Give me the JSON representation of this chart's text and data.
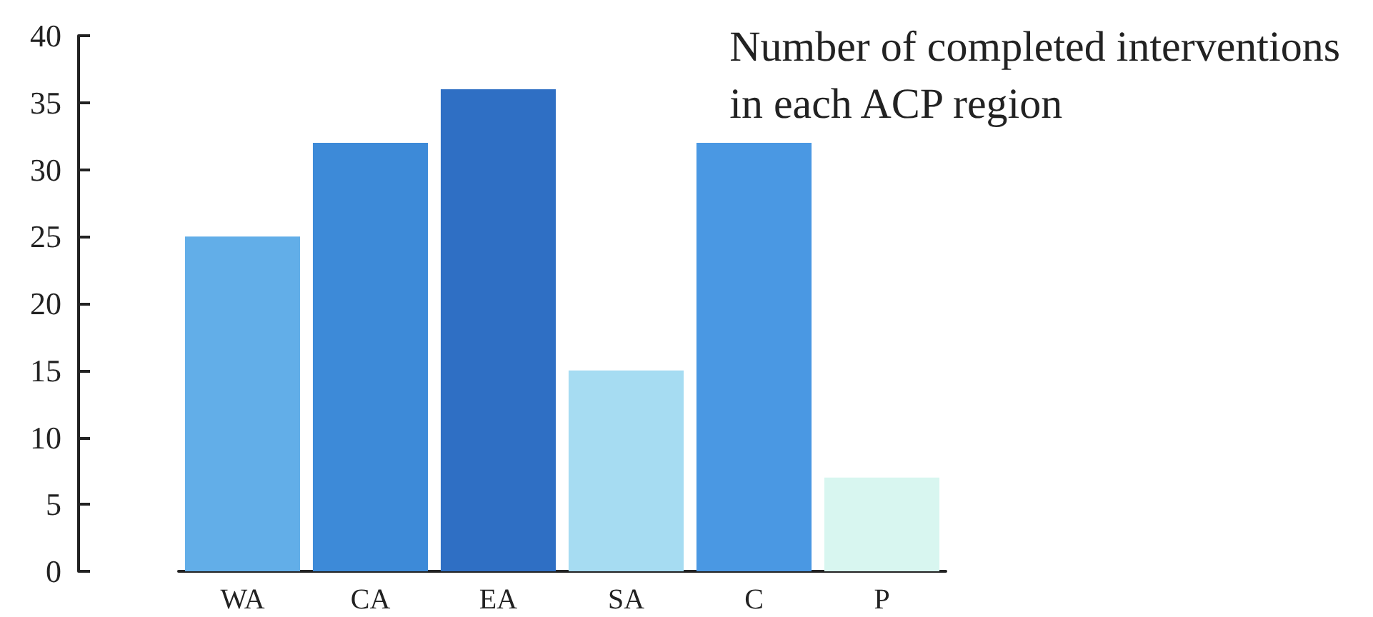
{
  "chart_data": {
    "type": "bar",
    "title": "Number of completed interventions\nin each ACP region",
    "categories": [
      "WA",
      "CA",
      "EA",
      "SA",
      "C",
      "P"
    ],
    "values": [
      25,
      32,
      36,
      15,
      32,
      7
    ],
    "colors": [
      "#62aee8",
      "#3d8ad8",
      "#2f6fc4",
      "#a6dcf2",
      "#4a98e3",
      "#d8f6f0"
    ],
    "ylim": [
      0,
      40
    ],
    "yticks": [
      0,
      5,
      10,
      15,
      20,
      25,
      30,
      35,
      40
    ],
    "grid": false
  }
}
